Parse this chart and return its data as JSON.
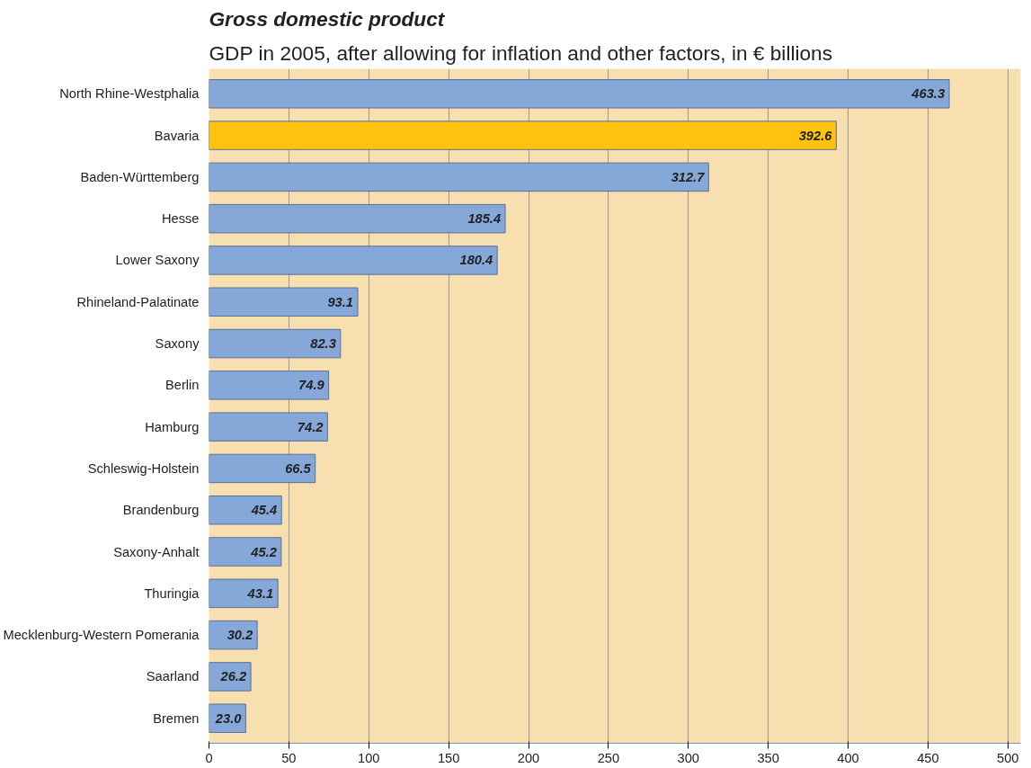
{
  "chart_data": {
    "type": "bar",
    "orientation": "horizontal",
    "title": "Gross domestic product",
    "subtitle": "GDP in 2005, after allowing for inflation and other factors, in € billions",
    "categories": [
      "North Rhine-Westphalia",
      "Bavaria",
      "Baden-Württemberg",
      "Hesse",
      "Lower Saxony",
      "Rhineland-Palatinate",
      "Saxony",
      "Berlin",
      "Hamburg",
      "Schleswig-Holstein",
      "Brandenburg",
      "Saxony-Anhalt",
      "Thuringia",
      "Mecklenburg-Western Pomerania",
      "Saarland",
      "Bremen"
    ],
    "values": [
      463.3,
      392.6,
      312.7,
      185.4,
      180.4,
      93.1,
      82.3,
      74.9,
      74.2,
      66.5,
      45.4,
      45.2,
      43.1,
      30.2,
      26.2,
      23.0
    ],
    "value_labels": [
      "463.3",
      "392.6",
      "312.7",
      "185.4",
      "180.4",
      "93.1",
      "82.3",
      "74.9",
      "74.2",
      "66.5",
      "45.4",
      "45.2",
      "43.1",
      "30.2",
      "26.2",
      "23.0"
    ],
    "colors": [
      "#86a8d8",
      "#ffc20e",
      "#86a8d8",
      "#86a8d8",
      "#86a8d8",
      "#86a8d8",
      "#86a8d8",
      "#86a8d8",
      "#86a8d8",
      "#86a8d8",
      "#86a8d8",
      "#86a8d8",
      "#86a8d8",
      "#86a8d8",
      "#86a8d8",
      "#86a8d8"
    ],
    "xlim": [
      0,
      508
    ],
    "xticks": [
      0,
      50,
      100,
      150,
      200,
      250,
      300,
      350,
      400,
      450,
      500
    ],
    "grid": "x"
  }
}
